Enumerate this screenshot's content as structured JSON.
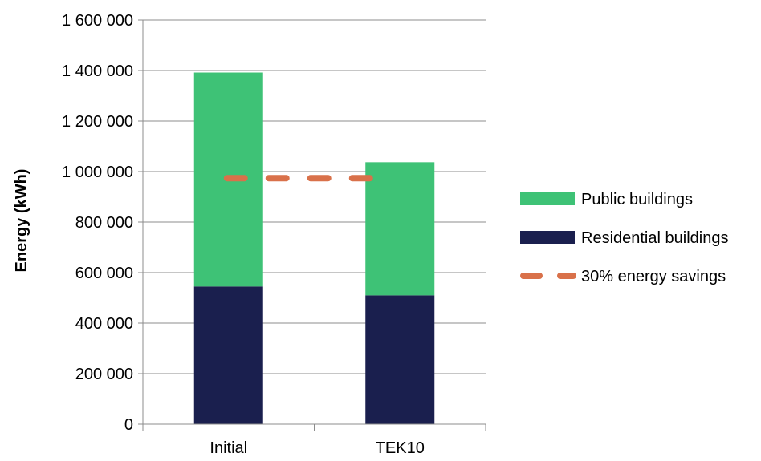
{
  "chart_data": {
    "type": "bar",
    "stacked": true,
    "categories": [
      "Initial",
      "TEK10"
    ],
    "series": [
      {
        "name": "Residential buildings",
        "values": [
          545000,
          510000
        ],
        "color": "#1a1f4e"
      },
      {
        "name": "Public buildings",
        "values": [
          847000,
          527000
        ],
        "color": "#3ec276"
      }
    ],
    "reference_line": {
      "name": "30% energy savings",
      "value": 974000,
      "style": "dashed",
      "color": "#d9714a"
    },
    "ylabel": "Energy (kWh)",
    "xlabel": "",
    "title": "",
    "ylim": [
      0,
      1600000
    ],
    "yticks": [
      0,
      200000,
      400000,
      600000,
      800000,
      1000000,
      1200000,
      1400000,
      1600000
    ],
    "ytick_labels": [
      "0",
      "200 000",
      "400 000",
      "600 000",
      "800 000",
      "1 000 000",
      "1 200 000",
      "1 400 000",
      "1 600 000"
    ],
    "grid": true,
    "legend_position": "right"
  }
}
